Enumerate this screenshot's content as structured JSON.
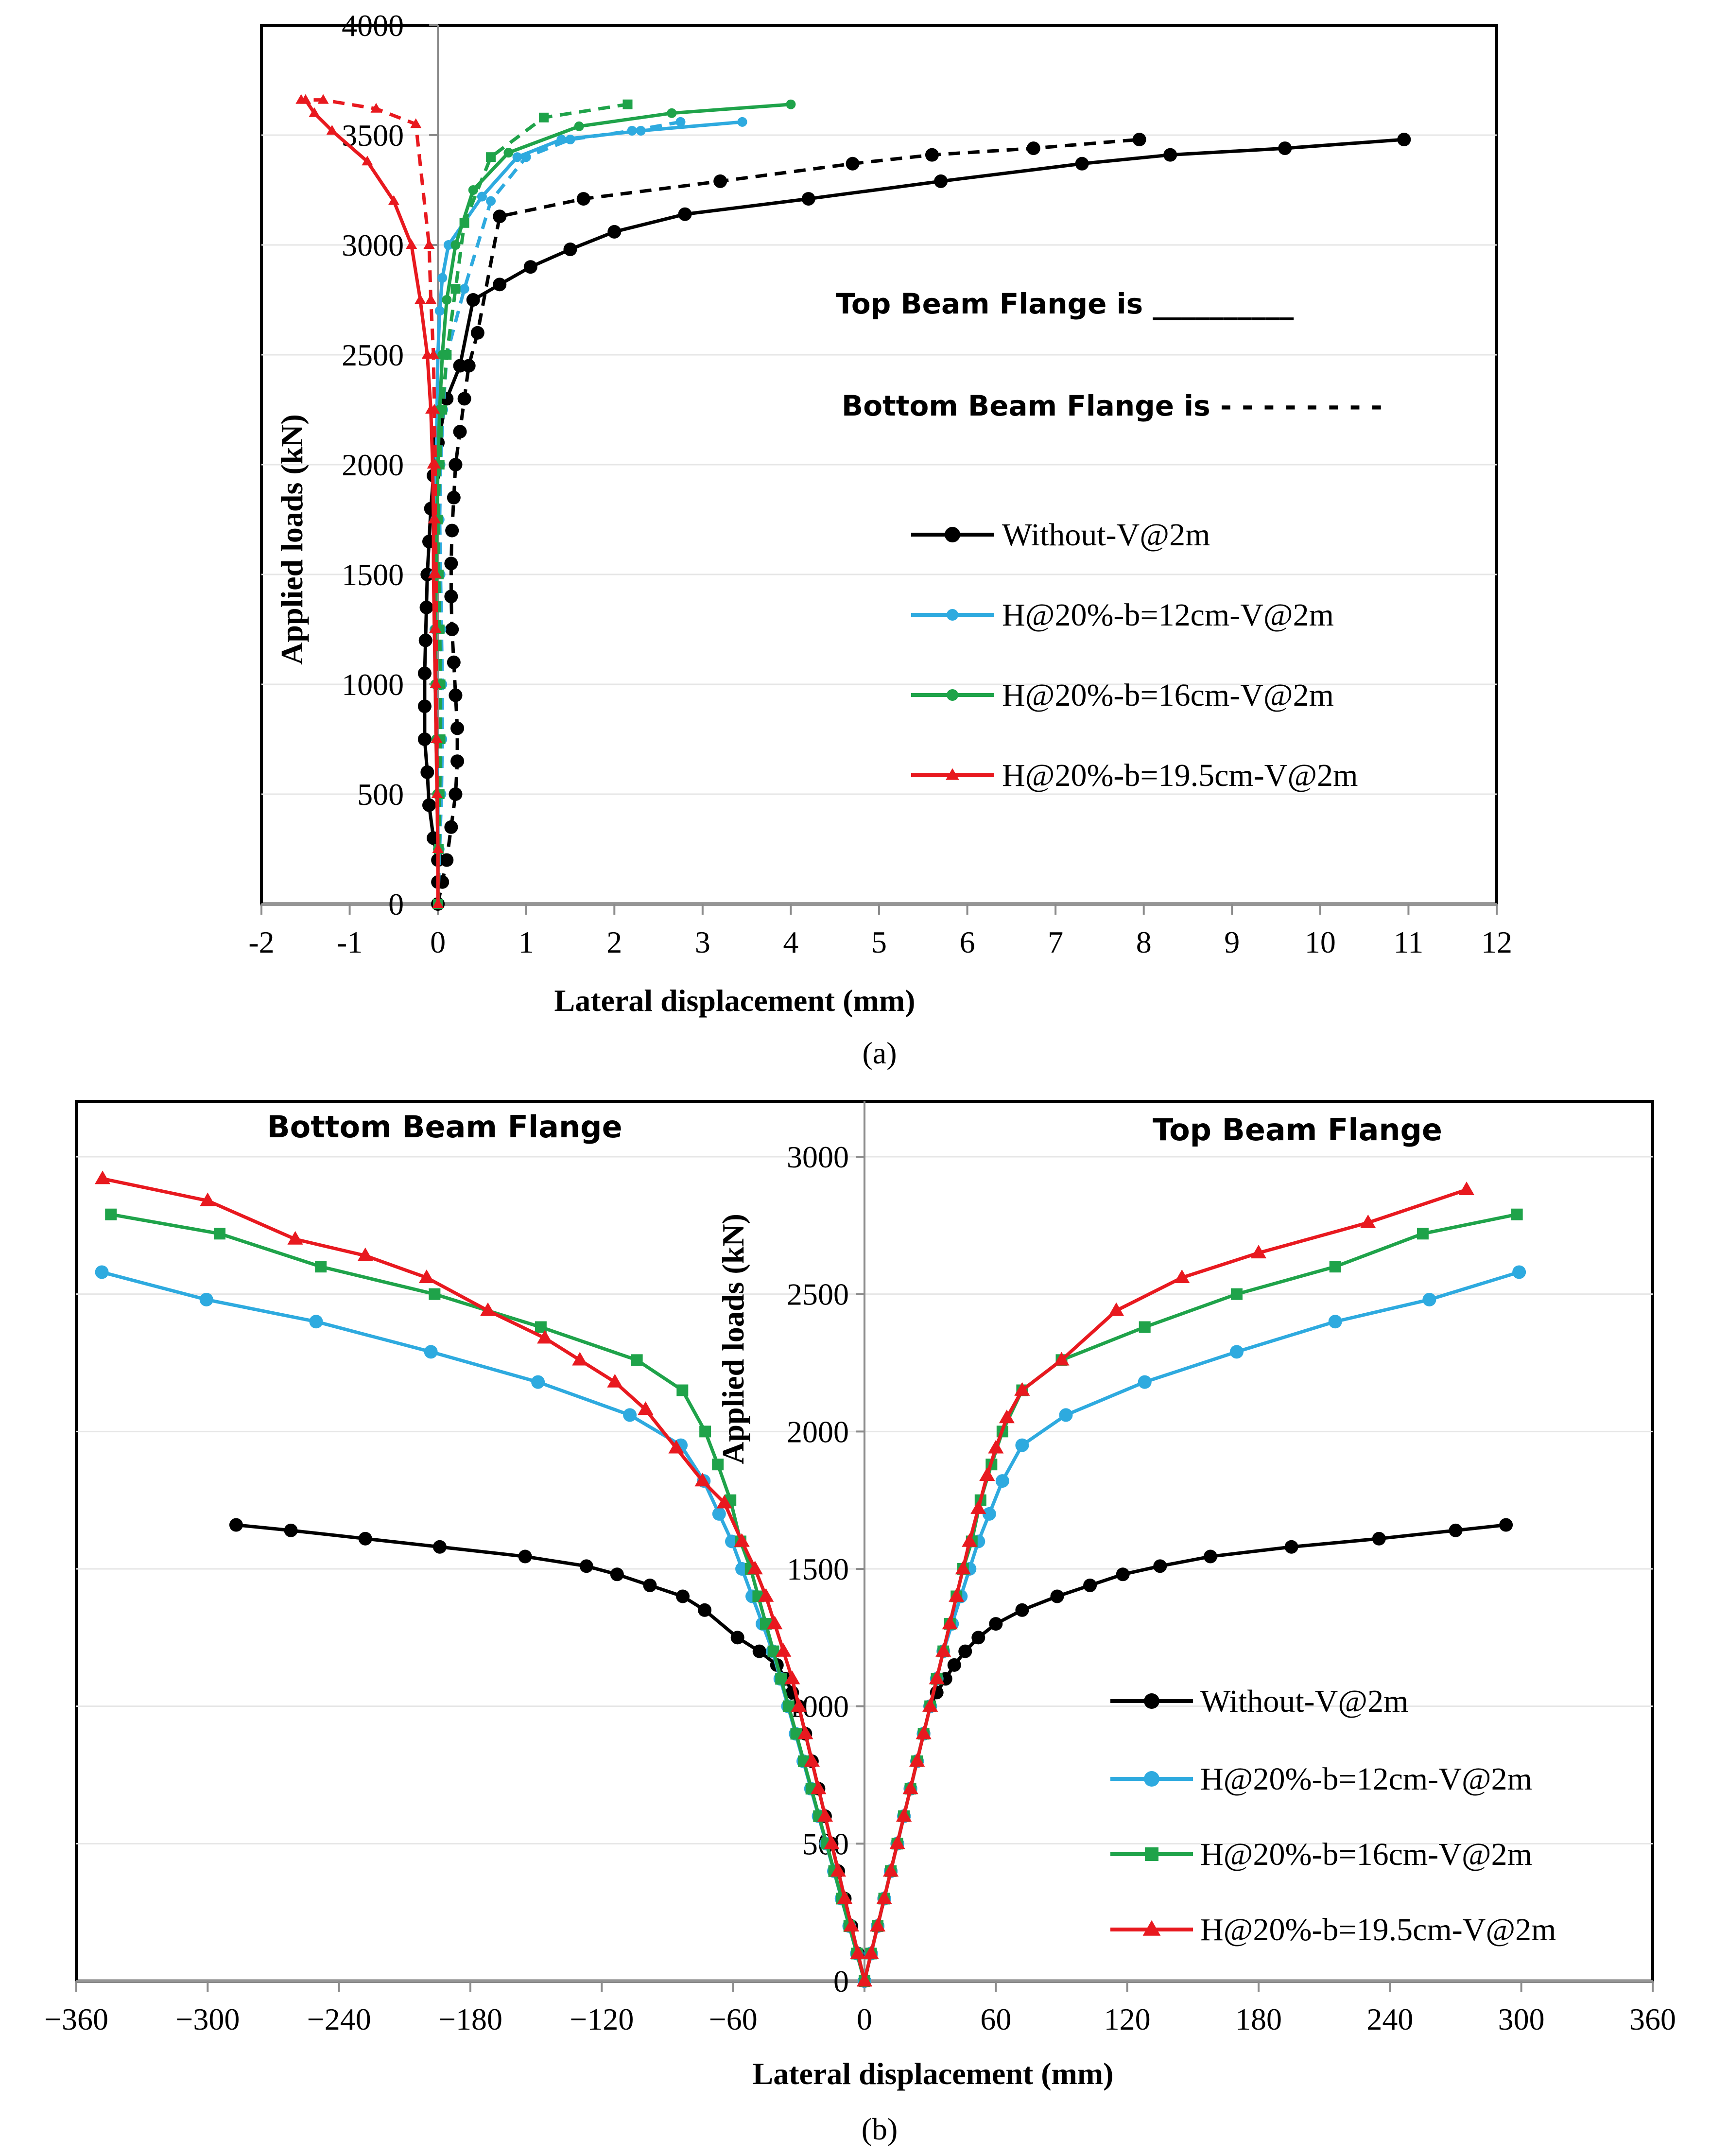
{
  "chart_data": [
    {
      "type": "line",
      "panel_label": "(a)",
      "xlabel": "Lateral displacement (mm)",
      "ylabel": "Applied loads (kN)",
      "xlim": [
        -2,
        12
      ],
      "ylim": [
        0,
        4000
      ],
      "xticks": [
        "-2",
        "-1",
        "0",
        "1",
        "2",
        "3",
        "4",
        "5",
        "6",
        "7",
        "8",
        "9",
        "10",
        "11",
        "12"
      ],
      "yticks": [
        "0",
        "500",
        "1000",
        "1500",
        "2000",
        "2500",
        "3000",
        "3500",
        "4000"
      ],
      "note_top": "Top Beam Flange is __________",
      "note_bottom": "Bottom Beam Flange is - - - - - - - -",
      "legend": {
        "position": "right-middle",
        "entries": [
          "Without-V@2m",
          "H@20%-b=12cm-V@2m",
          "H@20%-b=16cm-V@2m",
          "H@20%-b=19.5cm-V@2m"
        ]
      },
      "series": [
        {
          "name": "Without-V@2m",
          "color": "#000000",
          "marker": "circle",
          "markersize": 14,
          "line": "solid",
          "x": [
            0,
            0,
            0,
            -0.05,
            -0.1,
            -0.12,
            -0.15,
            -0.15,
            -0.15,
            -0.14,
            -0.13,
            -0.12,
            -0.1,
            -0.08,
            -0.05,
            0,
            0.1,
            0.25,
            0.4,
            0.7,
            1.05,
            1.5,
            2.0,
            2.8,
            4.2,
            5.7,
            7.3,
            8.3,
            9.6,
            10.95
          ],
          "y": [
            0,
            100,
            200,
            300,
            450,
            600,
            750,
            900,
            1050,
            1200,
            1350,
            1500,
            1650,
            1800,
            1950,
            2100,
            2300,
            2450,
            2750,
            2820,
            2900,
            2980,
            3060,
            3140,
            3210,
            3290,
            3370,
            3410,
            3440,
            3480
          ]
        },
        {
          "name": "Without-V@2m (bottom flange)",
          "color": "#000000",
          "marker": "circle",
          "markersize": 14,
          "line": "dashed",
          "x": [
            0,
            0.05,
            0.1,
            0.15,
            0.2,
            0.22,
            0.22,
            0.2,
            0.18,
            0.16,
            0.15,
            0.15,
            0.16,
            0.18,
            0.2,
            0.25,
            0.3,
            0.35,
            0.45,
            0.7,
            1.65,
            3.2,
            4.7,
            5.6,
            6.75,
            7.95
          ],
          "y": [
            0,
            100,
            200,
            350,
            500,
            650,
            800,
            950,
            1100,
            1250,
            1400,
            1550,
            1700,
            1850,
            2000,
            2150,
            2300,
            2450,
            2600,
            3130,
            3210,
            3290,
            3370,
            3410,
            3440,
            3480
          ]
        },
        {
          "name": "H@20%-b=12cm-V@2m",
          "color": "#2EAADF",
          "marker": "circle",
          "markersize": 10,
          "line": "solid",
          "x": [
            0,
            0,
            0,
            -0.02,
            -0.03,
            -0.04,
            -0.04,
            -0.03,
            -0.02,
            -0.01,
            0,
            0.02,
            0.05,
            0.12,
            0.5,
            0.9,
            1.4,
            2.3,
            3.45
          ],
          "y": [
            0,
            250,
            500,
            750,
            1000,
            1250,
            1500,
            1750,
            2000,
            2250,
            2500,
            2700,
            2850,
            3000,
            3220,
            3400,
            3480,
            3520,
            3560
          ]
        },
        {
          "name": "H@20%-b=12cm-V@2m (bottom flange)",
          "color": "#2EAADF",
          "marker": "circle",
          "markersize": 10,
          "line": "dashed",
          "x": [
            0,
            0.02,
            0.04,
            0.05,
            0.05,
            0.04,
            0.03,
            0.02,
            0.03,
            0.06,
            0.1,
            0.3,
            0.6,
            1.0,
            1.5,
            2.2,
            2.75
          ],
          "y": [
            0,
            250,
            500,
            750,
            1000,
            1250,
            1500,
            1750,
            2000,
            2250,
            2500,
            2800,
            3200,
            3400,
            3480,
            3520,
            3560
          ]
        },
        {
          "name": "H@20%-b=16cm-V@2m",
          "color": "#1FA34A",
          "marker": "circle",
          "markersize": 10,
          "line": "solid",
          "x": [
            0,
            0,
            -0.01,
            -0.02,
            -0.03,
            -0.03,
            -0.02,
            -0.01,
            0,
            0.02,
            0.05,
            0.1,
            0.2,
            0.4,
            0.8,
            1.6,
            2.65,
            4.0
          ],
          "y": [
            0,
            250,
            500,
            750,
            1000,
            1250,
            1500,
            1750,
            2000,
            2250,
            2500,
            2750,
            3000,
            3250,
            3420,
            3540,
            3600,
            3640
          ]
        },
        {
          "name": "H@20%-b=16cm-V@2m (bottom flange)",
          "color": "#1FA34A",
          "marker": "square",
          "markersize": 10,
          "line": "dashed",
          "x": [
            0,
            0.01,
            0.02,
            0.03,
            0.03,
            0.02,
            0.01,
            0,
            0.02,
            0.05,
            0.1,
            0.2,
            0.3,
            0.6,
            1.2,
            2.15
          ],
          "y": [
            0,
            250,
            500,
            750,
            1000,
            1250,
            1500,
            1750,
            2000,
            2250,
            2500,
            2800,
            3100,
            3400,
            3580,
            3640
          ]
        },
        {
          "name": "H@20%-b=19.5cm-V@2m",
          "color": "#E8191F",
          "marker": "triangle",
          "markersize": 10,
          "line": "solid",
          "x": [
            0,
            0,
            -0.01,
            -0.02,
            -0.03,
            -0.04,
            -0.05,
            -0.05,
            -0.06,
            -0.08,
            -0.12,
            -0.2,
            -0.3,
            -0.5,
            -0.8,
            -1.2,
            -1.4,
            -1.5
          ],
          "y": [
            0,
            250,
            500,
            750,
            1000,
            1250,
            1500,
            1750,
            2000,
            2250,
            2500,
            2750,
            3000,
            3200,
            3380,
            3520,
            3600,
            3660
          ]
        },
        {
          "name": "H@20%-b=19.5cm-V@2m (bottom flange)",
          "color": "#E8191F",
          "marker": "triangle",
          "markersize": 10,
          "line": "dashed",
          "x": [
            0,
            0,
            -0.01,
            -0.01,
            -0.02,
            -0.02,
            -0.02,
            -0.03,
            -0.03,
            -0.04,
            -0.05,
            -0.08,
            -0.1,
            -0.25,
            -0.7,
            -1.3,
            -1.55
          ],
          "y": [
            0,
            250,
            500,
            750,
            1000,
            1250,
            1500,
            1750,
            2000,
            2250,
            2500,
            2750,
            3000,
            3550,
            3620,
            3660,
            3660
          ]
        }
      ]
    },
    {
      "type": "line",
      "panel_label": "(b)",
      "xlabel": "Lateral displacement (mm)",
      "ylabel": "Applied loads (kN)",
      "xlim": [
        -360,
        360
      ],
      "ylim": [
        0,
        3000
      ],
      "xticks": [
        "−360",
        "−300",
        "−240",
        "−180",
        "−120",
        "−60",
        "0",
        "60",
        "120",
        "180",
        "240",
        "300",
        "360"
      ],
      "yticks": [
        "0",
        "500",
        "1000",
        "1500",
        "2000",
        "2500",
        "3000"
      ],
      "title_left": "Bottom Beam Flange",
      "title_right": "Top Beam Flange",
      "legend": {
        "position": "bottom-right",
        "entries": [
          "Without-V@2m",
          "H@20%-b=12cm-V@2m",
          "H@20%-b=16cm-V@2m",
          "H@20%-b=19.5cm-V@2m"
        ]
      },
      "series": [
        {
          "name": "Without-V@2m",
          "color": "#000000",
          "marker": "circle",
          "markersize": 14,
          "x_right": [
            0,
            3,
            6,
            9,
            12,
            15,
            18,
            21,
            24,
            27,
            30,
            33,
            37,
            41,
            46,
            52,
            60,
            72,
            88,
            103,
            118,
            135,
            158,
            195,
            235,
            270,
            293
          ],
          "x_left": [
            0,
            -3,
            -6,
            -9,
            -12,
            -15,
            -18,
            -21,
            -24,
            -27,
            -30,
            -33,
            -36,
            -40,
            -48,
            -58,
            -73,
            -83,
            -98,
            -113,
            -127,
            -155,
            -194,
            -228,
            -262,
            -287
          ],
          "y_right": [
            0,
            100,
            200,
            300,
            400,
            500,
            600,
            700,
            800,
            900,
            1000,
            1050,
            1100,
            1150,
            1200,
            1250,
            1300,
            1350,
            1400,
            1440,
            1480,
            1510,
            1545,
            1580,
            1610,
            1640,
            1660
          ],
          "y_left": [
            0,
            100,
            200,
            300,
            400,
            500,
            600,
            700,
            800,
            900,
            1000,
            1050,
            1100,
            1150,
            1200,
            1250,
            1350,
            1400,
            1440,
            1480,
            1510,
            1545,
            1580,
            1610,
            1640,
            1660
          ]
        },
        {
          "name": "H@20%-b=12cm-V@2m",
          "color": "#2EAADF",
          "marker": "circle",
          "markersize": 14,
          "x": [
            0,
            3,
            6,
            9,
            12,
            15,
            18,
            21,
            24,
            27,
            30,
            33,
            36,
            40,
            44,
            48,
            52,
            57,
            63,
            72,
            92,
            128,
            170,
            215,
            258,
            299
          ],
          "y": [
            0,
            100,
            200,
            300,
            400,
            500,
            600,
            700,
            800,
            900,
            1000,
            1100,
            1200,
            1300,
            1400,
            1500,
            1600,
            1700,
            1820,
            1950,
            2060,
            2180,
            2290,
            2400,
            2480,
            2580
          ]
        },
        {
          "name": "H@20%-b=16cm-V@2m",
          "color": "#1FA34A",
          "marker": "square",
          "markersize": 12,
          "x": [
            0,
            3,
            6,
            9,
            12,
            15,
            18,
            21,
            24,
            27,
            30,
            33,
            36,
            39,
            42,
            45,
            49,
            53,
            58,
            63,
            72,
            90,
            128,
            170,
            215,
            255,
            298
          ],
          "y": [
            0,
            100,
            200,
            300,
            400,
            500,
            600,
            700,
            800,
            900,
            1000,
            1100,
            1200,
            1300,
            1400,
            1500,
            1600,
            1750,
            1880,
            2000,
            2150,
            2260,
            2380,
            2500,
            2600,
            2720,
            2790
          ]
        },
        {
          "name": "H@20%-b=19.5cm-V@2m",
          "color": "#E8191F",
          "marker": "triangle",
          "markersize": 14,
          "x": [
            0,
            3,
            6,
            9,
            12,
            15,
            18,
            21,
            24,
            27,
            30,
            33,
            36,
            39,
            42,
            45,
            48,
            52,
            56,
            60,
            65,
            72,
            90,
            115,
            145,
            180,
            230,
            275
          ],
          "y": [
            0,
            100,
            200,
            300,
            400,
            500,
            600,
            700,
            800,
            900,
            1000,
            1100,
            1200,
            1300,
            1400,
            1500,
            1600,
            1720,
            1840,
            1940,
            2050,
            2150,
            2260,
            2440,
            2560,
            2650,
            2760,
            2880
          ],
          "x_left": [
            0,
            -3,
            -6,
            -9,
            -12,
            -15,
            -18,
            -21,
            -24,
            -27,
            -30,
            -33,
            -37,
            -41,
            -45,
            -50,
            -56,
            -64,
            -74,
            -86,
            -100,
            -114,
            -130,
            -146,
            -172,
            -200,
            -228,
            -260,
            -300,
            -348
          ],
          "y_left": [
            0,
            100,
            200,
            300,
            400,
            500,
            600,
            700,
            800,
            900,
            1000,
            1100,
            1200,
            1300,
            1400,
            1500,
            1600,
            1740,
            1820,
            1940,
            2080,
            2180,
            2260,
            2340,
            2440,
            2560,
            2640,
            2700,
            2840,
            2920
          ]
        }
      ]
    }
  ]
}
